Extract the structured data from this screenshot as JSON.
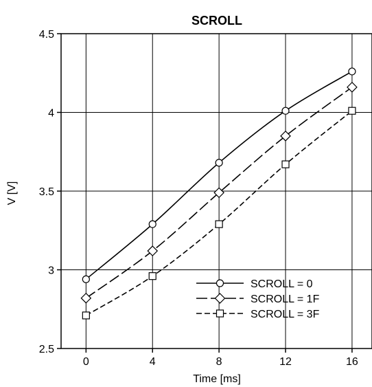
{
  "chart_data": {
    "type": "line",
    "title": "SCROLL",
    "xlabel": "Time [ms]",
    "ylabel": "V [V]",
    "xlim": [
      -1.5,
      17.2
    ],
    "ylim": [
      2.5,
      4.5
    ],
    "xticks": [
      0,
      4,
      8,
      12,
      16
    ],
    "yticks": [
      2.5,
      3,
      3.5,
      4,
      4.5
    ],
    "xtick_labels": [
      "0",
      "4",
      "8",
      "12",
      "16"
    ],
    "ytick_labels": [
      "2.5",
      "3",
      "3.5",
      "4",
      "4.5"
    ],
    "grid": true,
    "legend_position": "bottom-right",
    "series": [
      {
        "name": "SCROLL = 0",
        "marker": "circle",
        "line_style": "solid",
        "x": [
          0,
          4,
          8,
          12,
          16
        ],
        "y": [
          2.94,
          3.29,
          3.68,
          4.01,
          4.26
        ]
      },
      {
        "name": "SCROLL = 1F",
        "marker": "diamond",
        "line_style": "long-dash",
        "x": [
          0,
          4,
          8,
          12,
          16
        ],
        "y": [
          2.82,
          3.12,
          3.49,
          3.85,
          4.16
        ]
      },
      {
        "name": "SCROLL = 3F",
        "marker": "square",
        "line_style": "dash",
        "x": [
          0,
          4,
          8,
          12,
          16
        ],
        "y": [
          2.71,
          2.96,
          3.29,
          3.67,
          4.01
        ]
      }
    ],
    "line_color": "#000000"
  }
}
